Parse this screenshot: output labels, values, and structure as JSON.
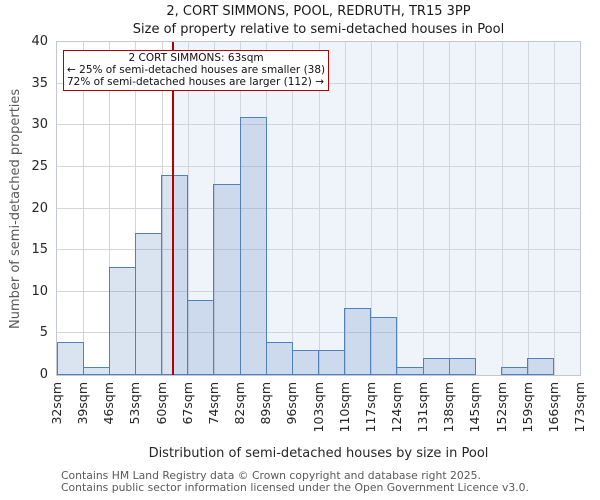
{
  "title": "2, CORT SIMMONS, POOL, REDRUTH, TR15 3PP",
  "subtitle": "Size of property relative to semi-detached houses in Pool",
  "annotation": {
    "line1": "2 CORT SIMMONS: 63sqm",
    "line2": "← 25% of semi-detached houses are smaller (38)",
    "line3": "72% of semi-detached houses are larger (112) →"
  },
  "chart_data": {
    "type": "bar",
    "title": "2, CORT SIMMONS, POOL, REDRUTH, TR15 3PP",
    "subtitle": "Size of property relative to semi-detached houses in Pool",
    "xlabel": "Distribution of semi-detached houses by size in Pool",
    "ylabel": "Number of semi-detached properties",
    "ylim": [
      0,
      40
    ],
    "yticks": [
      0,
      5,
      10,
      15,
      20,
      25,
      30,
      35,
      40
    ],
    "bin_edges_sqm": [
      32,
      39,
      46,
      53,
      60,
      67,
      74,
      82,
      89,
      96,
      103,
      110,
      117,
      124,
      131,
      138,
      145,
      152,
      159,
      166,
      173
    ],
    "x_tick_labels": [
      "32sqm",
      "39sqm",
      "46sqm",
      "53sqm",
      "60sqm",
      "67sqm",
      "74sqm",
      "82sqm",
      "89sqm",
      "96sqm",
      "103sqm",
      "110sqm",
      "117sqm",
      "124sqm",
      "131sqm",
      "138sqm",
      "145sqm",
      "152sqm",
      "159sqm",
      "166sqm",
      "173sqm"
    ],
    "values": [
      4,
      1,
      13,
      17,
      24,
      9,
      23,
      31,
      4,
      3,
      3,
      8,
      7,
      1,
      2,
      2,
      0,
      1,
      2,
      0
    ],
    "marker_value_sqm": 63,
    "grid": true,
    "legend": null,
    "colors": {
      "bar_fill": "rgba(79,129,189,0.21)",
      "bar_edge": "#4f81bd",
      "marker_line": "#b40000",
      "annotation_border": "#b40000",
      "shade_right_of_marker": "#eff3fa",
      "gridline": "#d2d5dd",
      "axis_text": "#262626",
      "muted_text": "#595959"
    }
  },
  "footer": {
    "line1": "Contains HM Land Registry data © Crown copyright and database right 2025.",
    "line2": "Contains public sector information licensed under the Open Government Licence v3.0."
  }
}
